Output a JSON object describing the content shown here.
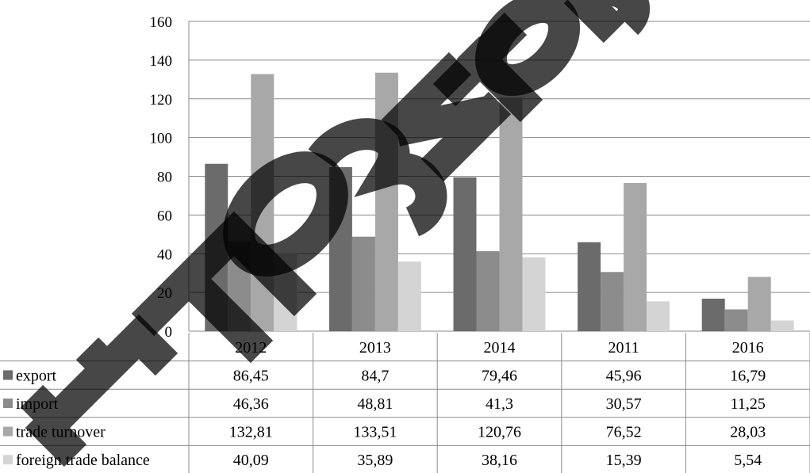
{
  "chart_data": {
    "type": "bar",
    "categories": [
      "2012",
      "2013",
      "2014",
      "2011",
      "2016"
    ],
    "ylim": [
      0,
      160
    ],
    "yticks": [
      0,
      20,
      40,
      60,
      80,
      100,
      120,
      140,
      160
    ],
    "grid": true,
    "legend": "data-table-left",
    "title": "",
    "xlabel": "",
    "ylabel": "",
    "series": [
      {
        "name": "export",
        "color": "#6b6b6b",
        "values": [
          86.45,
          84.7,
          79.46,
          45.96,
          16.79
        ],
        "labels": [
          "86,45",
          "84,7",
          "79,46",
          "45,96",
          "16,79"
        ]
      },
      {
        "name": "import",
        "color": "#8c8c8c",
        "values": [
          46.36,
          48.81,
          41.3,
          30.57,
          11.25
        ],
        "labels": [
          "46,36",
          "48,81",
          "41,3",
          "30,57",
          "11,25"
        ]
      },
      {
        "name": "trade turnover",
        "color": "#a8a8a8",
        "values": [
          132.81,
          133.51,
          120.76,
          76.52,
          28.03
        ],
        "labels": [
          "132,81",
          "133,51",
          "120,76",
          "76,52",
          "28,03"
        ]
      },
      {
        "name": "foreign trade balance",
        "color": "#d4d4d4",
        "values": [
          40.09,
          35.89,
          38.16,
          15.39,
          5.54
        ],
        "labels": [
          "40,09",
          "35,89",
          "38,16",
          "15,39",
          "5,54"
        ]
      }
    ]
  },
  "watermark": {
    "color": "#000000"
  }
}
